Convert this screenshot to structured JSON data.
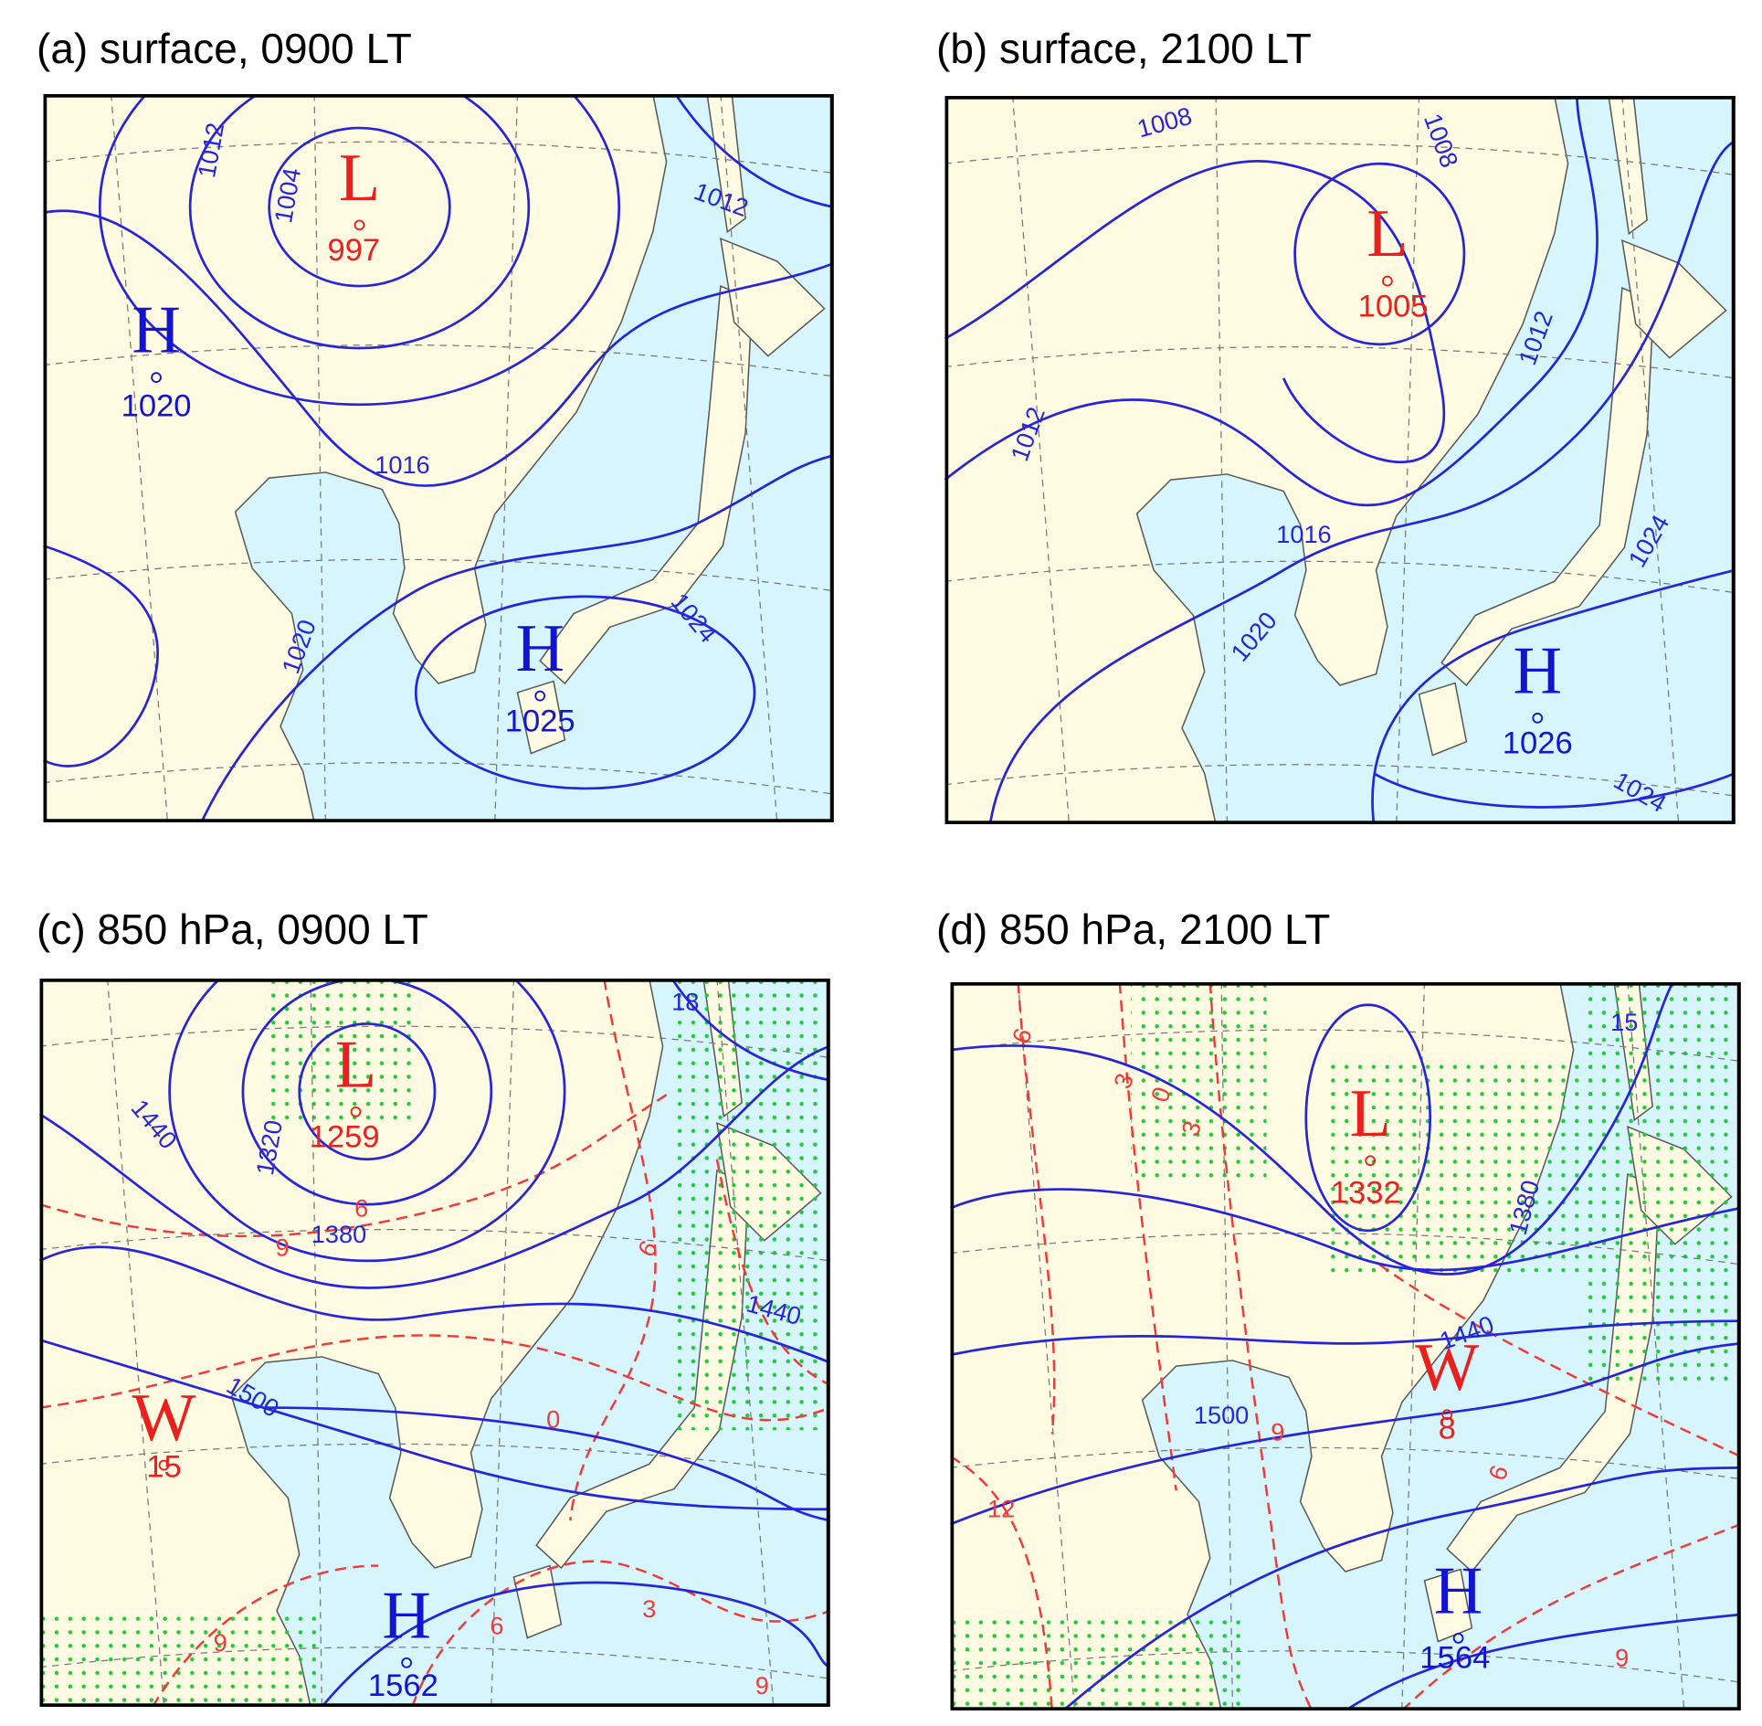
{
  "panels": [
    {
      "title": "(a) surface, 0900 LT",
      "centers": [
        {
          "symbol": "L",
          "value": "997"
        },
        {
          "symbol": "H",
          "value": "1020"
        },
        {
          "symbol": "H",
          "value": "1025"
        }
      ],
      "contour_labels": [
        "1012",
        "1004",
        "1012",
        "1016",
        "1020",
        "1024"
      ]
    },
    {
      "title": "(b) surface, 2100 LT",
      "centers": [
        {
          "symbol": "L",
          "value": "1005"
        },
        {
          "symbol": "H",
          "value": "1026"
        }
      ],
      "contour_labels": [
        "1008",
        "1008",
        "1012",
        "1012",
        "1016",
        "1020",
        "1024",
        "1024"
      ]
    },
    {
      "title": "(c) 850 hPa, 0900 LT",
      "centers": [
        {
          "symbol": "L",
          "value": "1259"
        },
        {
          "symbol": "W",
          "value": "15"
        },
        {
          "symbol": "H",
          "value": "1562"
        }
      ],
      "contour_labels": [
        "1440",
        "1320",
        "1380",
        "1500",
        "1440",
        "18"
      ],
      "temperature_labels": [
        "6",
        "9",
        "6",
        "0",
        "3",
        "6",
        "9",
        "9"
      ]
    },
    {
      "title": "(d) 850 hPa, 2100 LT",
      "centers": [
        {
          "symbol": "L",
          "value": "1332"
        },
        {
          "symbol": "W",
          "value": "8"
        },
        {
          "symbol": "H",
          "value": "1564"
        }
      ],
      "contour_labels": [
        "1380",
        "1440",
        "1500",
        "15"
      ],
      "temperature_labels": [
        "6",
        "3",
        "0",
        "3",
        "9",
        "6",
        "12",
        "9"
      ]
    }
  ]
}
